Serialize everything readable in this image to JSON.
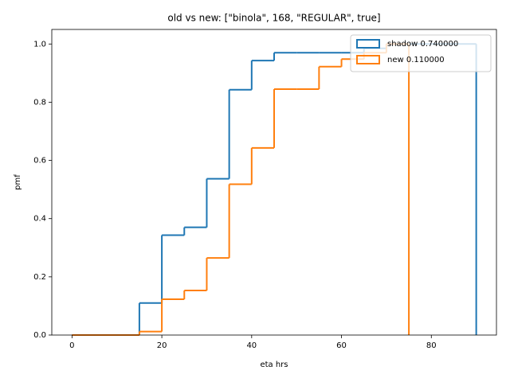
{
  "chart_data": {
    "type": "step",
    "title": "old vs new: [\"binola\", 168, \"REGULAR\", true]",
    "x_label": "eta hrs",
    "y_label": "pmf",
    "xlim": [
      -4.5,
      94.5
    ],
    "ylim": [
      0,
      1.05
    ],
    "xticks": [
      0,
      20,
      40,
      60,
      80
    ],
    "yticks": [
      {
        "value": 0,
        "label": "0.0"
      },
      0.2,
      0.4,
      0.6,
      0.8,
      {
        "value": 1,
        "label": "1.0"
      }
    ],
    "grid": false,
    "legend": "upper right",
    "series": [
      {
        "name": "shadow 0.740000",
        "color": "#1f77b4",
        "bins": [
          0,
          5,
          10,
          15,
          20,
          25,
          30,
          35,
          40,
          45,
          50,
          55,
          60,
          65,
          70,
          75,
          80,
          85,
          90
        ],
        "values": [
          0,
          0,
          0,
          0.11,
          0.343,
          0.37,
          0.537,
          0.843,
          0.943,
          0.97,
          0.97,
          0.97,
          0.97,
          0.985,
          1,
          1,
          1,
          1
        ]
      },
      {
        "name": "new 0.110000",
        "color": "#ff7f0e",
        "bins": [
          0,
          5,
          10,
          15,
          20,
          25,
          30,
          35,
          40,
          45,
          50,
          55,
          60,
          65,
          70,
          75
        ],
        "values": [
          0,
          0,
          0,
          0.012,
          0.123,
          0.153,
          0.265,
          0.518,
          0.643,
          0.845,
          0.845,
          0.922,
          0.948,
          0.97,
          1
        ]
      }
    ]
  }
}
